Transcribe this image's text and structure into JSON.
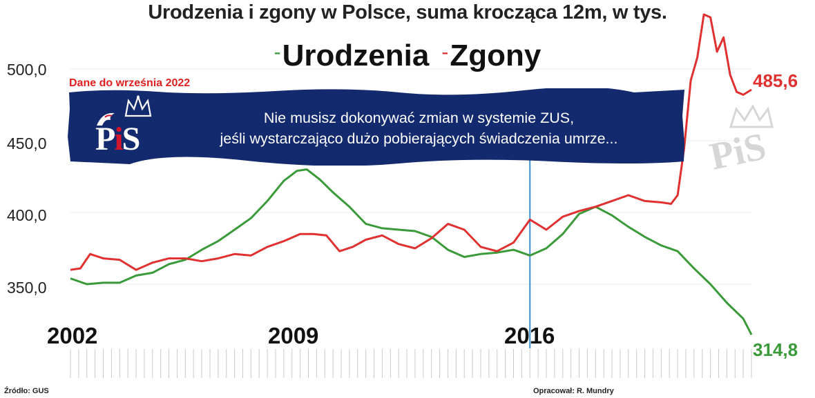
{
  "chart_data": {
    "type": "line",
    "title": "Urodzenia i zgony w Polsce, suma krocząca 12m, w tys.",
    "note": "Dane do września 2022",
    "xlabel": "",
    "ylabel": "",
    "yticks": [
      "500,0",
      "450,0",
      "400,0",
      "350,0"
    ],
    "ytick_values": [
      500,
      450,
      400,
      350
    ],
    "ylim": [
      300,
      555
    ],
    "xlim": [
      2002.0,
      2022.75
    ],
    "year_labels": [
      "2002",
      "2009",
      "2016"
    ],
    "year_label_values": [
      2002,
      2009,
      2016
    ],
    "marker_year": 2016.0,
    "series": [
      {
        "name": "Urodzenia",
        "color": "#3a9a3a",
        "end_label": "314,8",
        "x": [
          2002.0,
          2002.5,
          2003.0,
          2003.5,
          2004.0,
          2004.5,
          2005.0,
          2005.5,
          2006.0,
          2006.5,
          2007.0,
          2007.5,
          2008.0,
          2008.5,
          2008.9,
          2009.2,
          2009.6,
          2010.0,
          2010.5,
          2011.0,
          2011.5,
          2012.0,
          2012.5,
          2013.0,
          2013.5,
          2014.0,
          2014.5,
          2015.0,
          2015.5,
          2016.0,
          2016.5,
          2017.0,
          2017.5,
          2018.0,
          2018.5,
          2019.0,
          2019.5,
          2020.0,
          2020.5,
          2021.0,
          2021.5,
          2022.0,
          2022.5,
          2022.75
        ],
        "values": [
          354,
          350,
          351,
          351,
          356,
          358,
          364,
          367,
          374,
          380,
          388,
          396,
          408,
          422,
          429,
          430,
          423,
          414,
          404,
          392,
          389,
          388,
          387,
          383,
          374,
          369,
          371,
          372,
          374,
          370,
          375,
          385,
          399,
          404,
          398,
          390,
          383,
          377,
          373,
          361,
          350,
          337,
          326,
          314.8
        ]
      },
      {
        "name": "Zgony",
        "color": "#e03030",
        "end_label": "485,6",
        "x": [
          2002.0,
          2002.3,
          2002.6,
          2003.0,
          2003.5,
          2004.0,
          2004.5,
          2005.0,
          2005.5,
          2006.0,
          2006.5,
          2007.0,
          2007.5,
          2008.0,
          2008.5,
          2009.0,
          2009.4,
          2009.8,
          2010.2,
          2010.6,
          2011.0,
          2011.5,
          2012.0,
          2012.5,
          2013.0,
          2013.5,
          2014.0,
          2014.5,
          2015.0,
          2015.5,
          2016.0,
          2016.5,
          2017.0,
          2017.5,
          2018.0,
          2018.5,
          2019.0,
          2019.5,
          2020.0,
          2020.3,
          2020.5,
          2020.7,
          2020.9,
          2021.1,
          2021.3,
          2021.5,
          2021.7,
          2021.9,
          2022.1,
          2022.3,
          2022.5,
          2022.75
        ],
        "values": [
          360,
          361,
          371,
          368,
          367,
          360,
          365,
          368,
          368,
          366,
          368,
          371,
          370,
          376,
          380,
          385,
          385,
          384,
          373,
          376,
          381,
          384,
          378,
          375,
          382,
          392,
          388,
          376,
          373,
          379,
          395,
          388,
          397,
          401,
          404,
          408,
          412,
          408,
          407,
          406,
          412,
          445,
          492,
          508,
          538,
          536,
          512,
          522,
          496,
          484,
          482,
          485.6
        ]
      }
    ]
  },
  "legend": {
    "urodzenia_dash": "-",
    "urodzenia": "Urodzenia",
    "zgony_dash": "-",
    "zgony": "Zgony"
  },
  "banner": {
    "line1": "Nie musisz dokonywać zmian w systemie ZUS,",
    "line2": "jeśli wystarczająco dużo pobierających świadczenia umrze...",
    "bg_color": "#142a6e"
  },
  "logo": {
    "p": "P",
    "i": "i",
    "s": "S"
  },
  "watermark": {
    "text": "PiS"
  },
  "footer": {
    "source": "Źródło: GUS",
    "author": "Opracował: R. Mundry"
  },
  "colors": {
    "births": "#3a9a3a",
    "deaths": "#e03030",
    "marker": "#3a8fd0",
    "note": "#e02020"
  }
}
